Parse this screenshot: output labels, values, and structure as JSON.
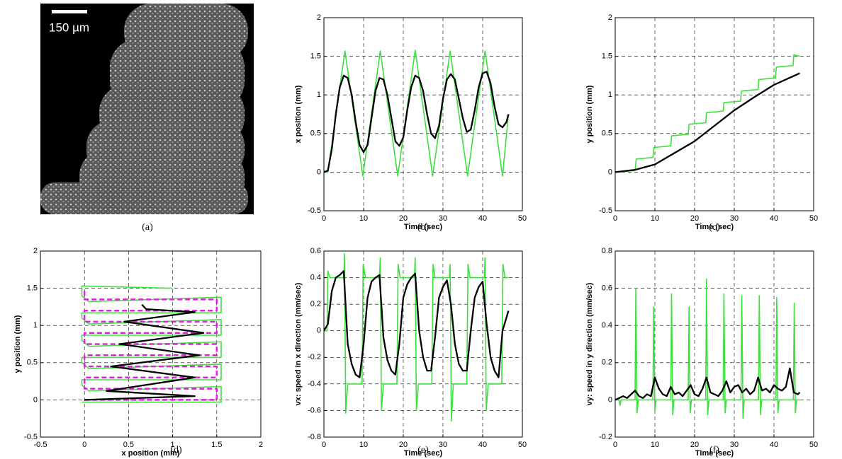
{
  "image_panel": {
    "scale_label": "150 µm",
    "caption": "(a)"
  },
  "chart_data": [
    {
      "type": "line",
      "caption": "(b)",
      "xlabel": "Time (sec)",
      "ylabel": "x position (mm)",
      "xlim": [
        0,
        50
      ],
      "xticks": [
        0,
        10,
        20,
        30,
        40,
        50
      ],
      "ylim": [
        -0.5,
        2
      ],
      "yticks": [
        -0.5,
        0,
        0.5,
        1,
        1.5,
        2
      ],
      "grid": true,
      "series": [
        {
          "color": "#3ee03e",
          "x": [
            0,
            1,
            5.3,
            9.8,
            14.2,
            18.6,
            23,
            27.4,
            31.8,
            36.2,
            40.6,
            45,
            46.5
          ],
          "values": [
            0,
            0,
            1.57,
            -0.05,
            1.57,
            -0.05,
            1.58,
            -0.05,
            1.57,
            -0.05,
            1.57,
            -0.05,
            0.75
          ]
        },
        {
          "color": "#000000",
          "x": [
            0,
            1,
            2,
            3,
            4,
            5,
            6,
            7,
            8,
            9,
            10,
            11,
            12,
            13,
            14,
            15,
            16,
            17,
            18,
            19,
            20,
            21,
            22,
            23,
            24,
            25,
            26,
            27,
            28,
            29,
            30,
            31,
            32,
            33,
            34,
            35,
            36,
            37,
            38,
            39,
            40,
            41,
            42,
            43,
            44,
            45,
            46,
            46.5
          ],
          "values": [
            0,
            0.02,
            0.3,
            0.75,
            1.1,
            1.25,
            1.22,
            1.0,
            0.65,
            0.35,
            0.26,
            0.35,
            0.7,
            1.05,
            1.22,
            1.2,
            1.0,
            0.7,
            0.4,
            0.34,
            0.45,
            0.8,
            1.1,
            1.25,
            1.22,
            1.05,
            0.75,
            0.5,
            0.44,
            0.6,
            0.95,
            1.2,
            1.27,
            1.2,
            0.95,
            0.7,
            0.52,
            0.55,
            0.8,
            1.1,
            1.28,
            1.3,
            1.15,
            0.85,
            0.62,
            0.58,
            0.65,
            0.75
          ]
        }
      ]
    },
    {
      "type": "line",
      "caption": "(c)",
      "xlabel": "Time (sec)",
      "ylabel": "y position (mm)",
      "xlim": [
        0,
        50
      ],
      "xticks": [
        0,
        10,
        20,
        30,
        40,
        50
      ],
      "ylim": [
        -0.5,
        2
      ],
      "yticks": [
        -0.5,
        0,
        0.5,
        1,
        1.5,
        2
      ],
      "grid": true,
      "series": [
        {
          "color": "#3ee03e",
          "x": [
            0,
            5,
            5.3,
            9.5,
            9.8,
            14,
            14.2,
            18.4,
            18.6,
            22.8,
            23,
            27.2,
            27.4,
            31.6,
            31.8,
            36,
            36.2,
            40.4,
            40.6,
            44.8,
            45,
            46.5
          ],
          "values": [
            0,
            0.02,
            0.17,
            0.19,
            0.32,
            0.34,
            0.47,
            0.49,
            0.62,
            0.64,
            0.77,
            0.79,
            0.9,
            0.92,
            1.05,
            1.07,
            1.2,
            1.22,
            1.36,
            1.38,
            1.52,
            1.5
          ]
        },
        {
          "color": "#000000",
          "x": [
            0,
            5,
            10,
            15,
            20,
            25,
            30,
            35,
            40,
            46.5
          ],
          "values": [
            0,
            0.03,
            0.1,
            0.25,
            0.4,
            0.6,
            0.8,
            0.97,
            1.13,
            1.28
          ]
        }
      ]
    },
    {
      "type": "line",
      "caption": "(d)",
      "xlabel": "x position (mm)",
      "ylabel": "y position (mm)",
      "xlim": [
        -0.5,
        2
      ],
      "xticks": [
        -0.5,
        0,
        0.5,
        1,
        1.5,
        2
      ],
      "ylim": [
        -0.5,
        2
      ],
      "yticks": [
        -0.5,
        0,
        0.5,
        1,
        1.5,
        2
      ],
      "grid": true,
      "series": [
        {
          "color": "#3ee03e",
          "x": [
            -0.03,
            1.55,
            1.55,
            0.05,
            -0.03,
            -0.03,
            1.55,
            1.55,
            0.05,
            -0.03,
            -0.03,
            1.55,
            1.55,
            0.05,
            -0.03,
            -0.03,
            1.55,
            1.55,
            0.05,
            -0.03,
            -0.03,
            1.55,
            1.55,
            0.05,
            -0.03,
            -0.03,
            1.0
          ],
          "values": [
            -0.03,
            -0.03,
            0.18,
            0.12,
            0.2,
            0.27,
            0.27,
            0.48,
            0.42,
            0.5,
            0.57,
            0.57,
            0.78,
            0.72,
            0.8,
            0.87,
            0.87,
            1.08,
            1.02,
            1.1,
            1.17,
            1.17,
            1.38,
            1.32,
            1.4,
            1.53,
            1.5
          ]
        },
        {
          "color": "#e020e0",
          "style": "dashed",
          "x": [
            0,
            1.5,
            1.5,
            0,
            0,
            1.5,
            1.5,
            0,
            0,
            1.5,
            1.5,
            0,
            0,
            1.5,
            1.5,
            0,
            0,
            1.5,
            1.5,
            0,
            0
          ],
          "values": [
            0,
            0,
            0.15,
            0.15,
            0.3,
            0.3,
            0.45,
            0.45,
            0.6,
            0.6,
            0.75,
            0.75,
            0.9,
            0.9,
            1.05,
            1.05,
            1.2,
            1.2,
            1.35,
            1.35,
            1.5
          ]
        },
        {
          "color": "#000000",
          "x": [
            0,
            1.25,
            0.25,
            1.25,
            0.3,
            1.3,
            0.4,
            1.35,
            0.45,
            1.25,
            0.7,
            0.65
          ],
          "values": [
            0,
            0.05,
            0.12,
            0.3,
            0.45,
            0.6,
            0.75,
            0.9,
            1.05,
            1.18,
            1.22,
            1.28
          ]
        }
      ]
    },
    {
      "type": "line",
      "caption": "(e)",
      "xlabel": "Time (sec)",
      "ylabel": "vx: speed in x direction (mm/sec)",
      "xlim": [
        0,
        50
      ],
      "xticks": [
        0,
        10,
        20,
        30,
        40,
        50
      ],
      "ylim": [
        -0.8,
        0.6
      ],
      "yticks": [
        -0.8,
        -0.6,
        -0.4,
        -0.2,
        0,
        0.2,
        0.4,
        0.6
      ],
      "grid": true,
      "series": [
        {
          "color": "#3ee03e",
          "x": [
            0,
            0.8,
            1,
            1.5,
            5,
            5.2,
            5.5,
            6,
            9.6,
            9.9,
            10.5,
            14,
            14.2,
            14.5,
            15,
            18.4,
            18.7,
            19.2,
            22.8,
            23,
            23.3,
            23.8,
            27.2,
            27.5,
            28,
            31.6,
            31.8,
            32.1,
            32.6,
            36,
            36.3,
            36.8,
            40.4,
            40.6,
            40.9,
            41.4,
            44.8,
            45.1,
            45.6,
            46.5
          ],
          "values": [
            0,
            0,
            0.45,
            0.4,
            0.4,
            0.58,
            -0.62,
            -0.4,
            -0.4,
            0.5,
            0.4,
            0.4,
            0.55,
            -0.6,
            -0.4,
            -0.4,
            0.5,
            0.4,
            0.4,
            0.55,
            -0.6,
            -0.4,
            -0.4,
            0.5,
            0.4,
            0.4,
            0.5,
            -0.68,
            -0.4,
            -0.4,
            0.5,
            0.4,
            0.4,
            0.55,
            -0.6,
            -0.4,
            -0.4,
            0.5,
            0.4,
            0.4
          ]
        },
        {
          "color": "#000000",
          "x": [
            0,
            1,
            2,
            3,
            4,
            5,
            6,
            7,
            8,
            9,
            10,
            11,
            12,
            13,
            14,
            15,
            16,
            17,
            18,
            19,
            20,
            21,
            22,
            23,
            24,
            25,
            26,
            27,
            28,
            29,
            30,
            31,
            32,
            33,
            34,
            35,
            36,
            37,
            38,
            39,
            40,
            41,
            42,
            43,
            44,
            45,
            46,
            46.5
          ],
          "values": [
            0,
            0.05,
            0.3,
            0.4,
            0.42,
            0.45,
            -0.1,
            -0.25,
            -0.33,
            -0.35,
            -0.1,
            0.25,
            0.37,
            0.4,
            0.42,
            -0.05,
            -0.22,
            -0.3,
            -0.33,
            -0.1,
            0.25,
            0.35,
            0.4,
            0.43,
            0,
            -0.2,
            -0.3,
            -0.3,
            -0.05,
            0.25,
            0.33,
            0.38,
            0.2,
            -0.1,
            -0.25,
            -0.3,
            -0.3,
            0,
            0.25,
            0.33,
            0.37,
            0.05,
            -0.2,
            -0.3,
            -0.35,
            0,
            0.1,
            0.15
          ]
        }
      ]
    },
    {
      "type": "line",
      "caption": "(f)",
      "xlabel": "Time (sec)",
      "ylabel": "vy: speed in y direction (mm/sec)",
      "xlim": [
        0,
        50
      ],
      "xticks": [
        0,
        10,
        20,
        30,
        40,
        50
      ],
      "ylim": [
        -0.2,
        0.8
      ],
      "yticks": [
        -0.2,
        0,
        0.2,
        0.4,
        0.6,
        0.8
      ],
      "grid": true,
      "series": [
        {
          "color": "#3ee03e",
          "x": [
            0,
            1,
            1.2,
            1.5,
            5,
            5.2,
            5.5,
            5.8,
            9.5,
            9.7,
            10,
            10.3,
            14,
            14.2,
            14.5,
            14.8,
            18.4,
            18.6,
            18.9,
            19.2,
            22.8,
            23,
            23.3,
            23.6,
            27.2,
            27.4,
            27.7,
            28,
            31.7,
            31.9,
            32.2,
            32.5,
            36.1,
            36.3,
            36.6,
            36.9,
            40.5,
            40.7,
            41,
            41.3,
            44.9,
            45.1,
            45.4,
            45.7,
            46.5
          ],
          "values": [
            0,
            0,
            -0.03,
            0,
            0,
            0.6,
            -0.07,
            0,
            0,
            0.5,
            -0.06,
            0,
            0,
            0.57,
            -0.08,
            0,
            0,
            0.5,
            -0.07,
            0,
            0,
            0.65,
            -0.08,
            0,
            0,
            0.57,
            -0.07,
            0,
            0,
            0.56,
            -0.1,
            0,
            0,
            0.56,
            -0.08,
            0,
            0,
            0.55,
            -0.07,
            0,
            0,
            0.52,
            -0.07,
            0,
            0
          ]
        },
        {
          "color": "#000000",
          "x": [
            0,
            1,
            2,
            3,
            4,
            5,
            6,
            7,
            8,
            9,
            10,
            11,
            12,
            13,
            14,
            15,
            16,
            17,
            18,
            19,
            20,
            21,
            22,
            23,
            24,
            25,
            26,
            27,
            28,
            29,
            30,
            31,
            32,
            33,
            34,
            35,
            36,
            37,
            38,
            39,
            40,
            41,
            42,
            43,
            44,
            45,
            46,
            46.5
          ],
          "values": [
            0,
            0.01,
            0.02,
            0.01,
            0.03,
            0.05,
            0.02,
            0.01,
            0.03,
            0.02,
            0.12,
            0.06,
            0.03,
            0.02,
            0.07,
            0.03,
            0.04,
            0.02,
            0.05,
            0.08,
            0.03,
            0.02,
            0.06,
            0.12,
            0.04,
            0.03,
            0.02,
            0.05,
            0.1,
            0.04,
            0.07,
            0.08,
            0.04,
            0.06,
            0.03,
            0.05,
            0.12,
            0.05,
            0.06,
            0.04,
            0.08,
            0.06,
            0.05,
            0.07,
            0.17,
            0.04,
            0.03,
            0.04
          ]
        }
      ]
    }
  ]
}
